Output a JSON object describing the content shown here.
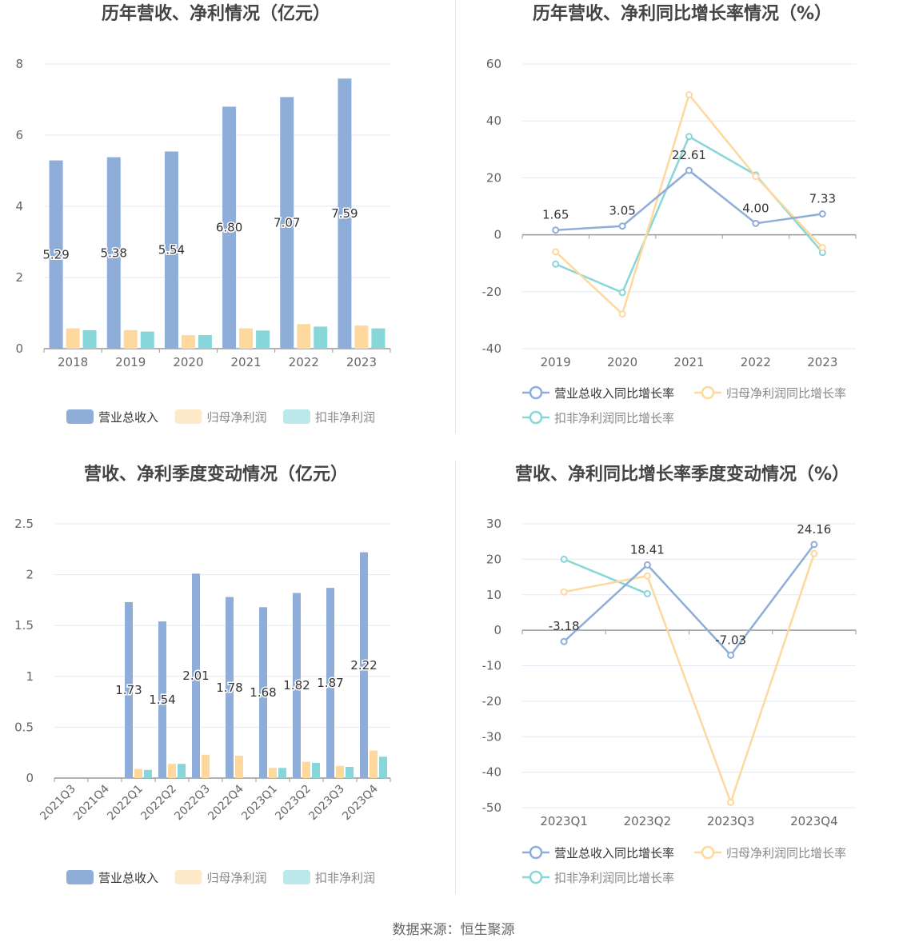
{
  "source_text": "数据来源：恒生聚源",
  "colors": {
    "blue": "#8eadd9",
    "yellow": "#fed89d",
    "teal": "#87d6d9",
    "axis": "#666666",
    "grid": "#e4e8f2",
    "zero": "#999999",
    "title": "#444444"
  },
  "chart_data": [
    {
      "type": "bar",
      "title": "历年营收、净利情况（亿元）",
      "categories": [
        "2018",
        "2019",
        "2020",
        "2021",
        "2022",
        "2023"
      ],
      "ylim": [
        0,
        8
      ],
      "yticks": [
        "0",
        "2",
        "4",
        "6",
        "8"
      ],
      "series": [
        {
          "name": "营业总收入",
          "values": [
            5.29,
            5.38,
            5.54,
            6.8,
            7.07,
            7.59
          ],
          "labels": [
            "5.29",
            "5.38",
            "5.54",
            "6.80",
            "7.07",
            "7.59"
          ]
        },
        {
          "name": "归母净利润",
          "values": [
            0.57,
            0.52,
            0.38,
            0.57,
            0.69,
            0.65
          ]
        },
        {
          "name": "扣非净利润",
          "values": [
            0.52,
            0.48,
            0.38,
            0.51,
            0.62,
            0.57
          ]
        }
      ],
      "legend": "bottom",
      "grid": true
    },
    {
      "type": "line",
      "title": "历年营收、净利同比增长率情况（%）",
      "categories": [
        "2019",
        "2020",
        "2021",
        "2022",
        "2023"
      ],
      "ylim": [
        -40,
        60
      ],
      "yticks": [
        "-40",
        "-20",
        "0",
        "20",
        "40",
        "60"
      ],
      "series": [
        {
          "name": "营业总收入同比增长率",
          "values": [
            1.65,
            3.05,
            22.61,
            4.0,
            7.33
          ],
          "labels": [
            "1.65",
            "3.05",
            "22.61",
            "4.00",
            "7.33"
          ]
        },
        {
          "name": "归母净利润同比增长率",
          "values": [
            -6.0,
            -27.8,
            49.2,
            20.5,
            -4.5
          ]
        },
        {
          "name": "扣非净利润同比增长率",
          "values": [
            -10.3,
            -20.3,
            34.5,
            21.0,
            -6.2
          ]
        }
      ],
      "legend": "bottom",
      "grid": true
    },
    {
      "type": "bar",
      "title": "营收、净利季度变动情况（亿元）",
      "categories": [
        "2021Q3",
        "2021Q4",
        "2022Q1",
        "2022Q2",
        "2022Q3",
        "2022Q4",
        "2023Q1",
        "2023Q2",
        "2023Q3",
        "2023Q4"
      ],
      "ylim": [
        0,
        2.5
      ],
      "yticks": [
        "0",
        "0.5",
        "1",
        "1.5",
        "2",
        "2.5"
      ],
      "series": [
        {
          "name": "营业总收入",
          "values": [
            null,
            null,
            1.73,
            1.54,
            2.01,
            1.78,
            1.68,
            1.82,
            1.87,
            2.22
          ],
          "labels": [
            "",
            "",
            "1.73",
            "1.54",
            "2.01",
            "1.78",
            "1.68",
            "1.82",
            "1.87",
            "2.22"
          ]
        },
        {
          "name": "归母净利润",
          "values": [
            null,
            null,
            0.09,
            0.14,
            0.23,
            0.22,
            0.1,
            0.16,
            0.12,
            0.27
          ]
        },
        {
          "name": "扣非净利润",
          "values": [
            null,
            null,
            0.08,
            0.14,
            null,
            null,
            0.1,
            0.15,
            0.11,
            0.21
          ]
        }
      ],
      "legend": "bottom",
      "grid": true
    },
    {
      "type": "line",
      "title": "营收、净利同比增长率季度变动情况（%）",
      "categories": [
        "2023Q1",
        "2023Q2",
        "2023Q3",
        "2023Q4"
      ],
      "ylim": [
        -50,
        30
      ],
      "yticks": [
        "-50",
        "-40",
        "-30",
        "-20",
        "-10",
        "0",
        "10",
        "20",
        "30"
      ],
      "series": [
        {
          "name": "营业总收入同比增长率",
          "values": [
            -3.18,
            18.41,
            -7.03,
            24.16
          ],
          "labels": [
            "-3.18",
            "18.41",
            "-7.03",
            "24.16"
          ]
        },
        {
          "name": "归母净利润同比增长率",
          "values": [
            10.8,
            15.3,
            -48.5,
            21.6
          ]
        },
        {
          "name": "扣非净利润同比增长率",
          "values": [
            20.0,
            10.3,
            null,
            null
          ]
        }
      ],
      "legend": "bottom",
      "grid": true
    }
  ]
}
